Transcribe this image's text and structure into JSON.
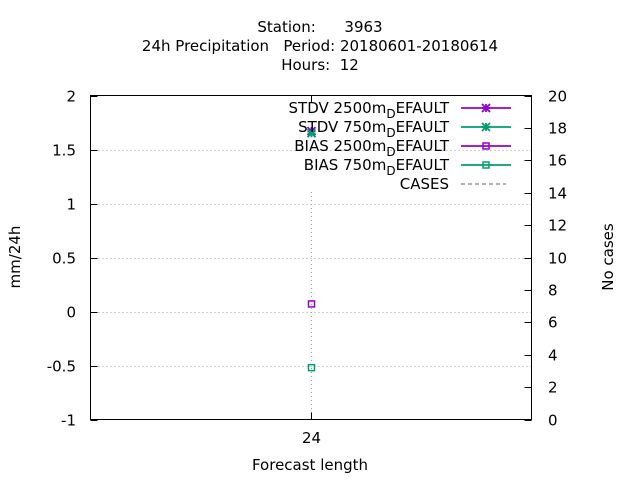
{
  "chart_data": {
    "type": "scatter",
    "title_lines": [
      "Station:      3963",
      "24h Precipitation   Period: 20180601-20180614",
      "Hours:  12"
    ],
    "xlabel": "Forecast length",
    "ylabel": "mm/24h",
    "y2label": "No cases",
    "categories": [
      "24"
    ],
    "x": [
      24
    ],
    "ylim": [
      -1,
      2
    ],
    "y2lim": [
      0,
      20
    ],
    "yticks": [
      "-1",
      "-0.5",
      "0",
      "0.5",
      "1",
      "1.5",
      "2"
    ],
    "y2ticks": [
      "0",
      "2",
      "4",
      "6",
      "8",
      "10",
      "12",
      "14",
      "16",
      "18",
      "20"
    ],
    "grid": true,
    "legend_position": "top-right",
    "series": [
      {
        "name": "STDV 2500m",
        "name_sub": "D",
        "name_rest": "EFAULT",
        "color": "#9400d3",
        "marker": "star",
        "values": [
          1.67
        ]
      },
      {
        "name": "STDV 750m",
        "name_sub": "D",
        "name_rest": "EFAULT",
        "color": "#009e73",
        "marker": "star",
        "values": [
          1.65
        ]
      },
      {
        "name": "BIAS 2500m",
        "name_sub": "D",
        "name_rest": "EFAULT",
        "color": "#9400d3",
        "marker": "square",
        "values": [
          0.07
        ]
      },
      {
        "name": "BIAS 750m",
        "name_sub": "D",
        "name_rest": "EFAULT",
        "color": "#009e73",
        "marker": "square",
        "values": [
          -0.52
        ]
      },
      {
        "name": "CASES",
        "name_sub": "",
        "name_rest": "",
        "color": "#808080",
        "marker": "dash",
        "axis": "y2",
        "values": [
          14
        ]
      }
    ]
  }
}
